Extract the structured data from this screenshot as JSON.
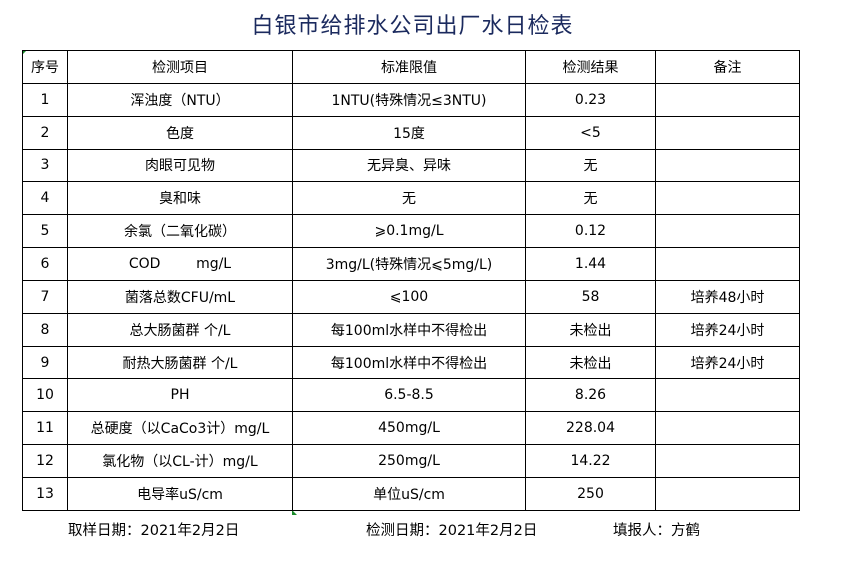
{
  "title": "白银市给排水公司出厂水日检表",
  "table": {
    "headers": [
      "序号",
      "检测项目",
      "标准限值",
      "检测结果",
      "备注"
    ],
    "rows": [
      [
        "1",
        "浑浊度（NTU）",
        "1NTU(特殊情况≤3NTU)",
        "0.23",
        ""
      ],
      [
        "2",
        "色度",
        "15度",
        "<5",
        ""
      ],
      [
        "3",
        "肉眼可见物",
        "无异臭、异味",
        "无",
        ""
      ],
      [
        "4",
        "臭和味",
        "无",
        "无",
        ""
      ],
      [
        "5",
        "余氯（二氧化碳）",
        "⩾0.1mg/L",
        "0.12",
        ""
      ],
      [
        "6",
        "COD        mg/L",
        "3mg/L(特殊情况⩽5mg/L)",
        "1.44",
        ""
      ],
      [
        "7",
        "菌落总数CFU/mL",
        "⩽100",
        "58",
        "培养48小时"
      ],
      [
        "8",
        "总大肠菌群 个/L",
        "每100ml水样中不得检出",
        "未检出",
        "培养24小时"
      ],
      [
        "9",
        "耐热大肠菌群 个/L",
        "每100ml水样中不得检出",
        "未检出",
        "培养24小时"
      ],
      [
        "10",
        "PH",
        "6.5-8.5",
        "8.26",
        ""
      ],
      [
        "11",
        "总硬度（以CaCo3计）mg/L",
        "450mg/L",
        "228.04",
        ""
      ],
      [
        "12",
        "氯化物（以CL-计）mg/L",
        "250mg/L",
        "14.22",
        ""
      ],
      [
        "13",
        "电导率uS/cm",
        "单位uS/cm",
        "250",
        ""
      ]
    ]
  },
  "footer": {
    "sampling_date": "取样日期：2021年2月2日",
    "test_date": "检测日期：2021年2月2日",
    "reporter": "填报人：方鹤"
  }
}
